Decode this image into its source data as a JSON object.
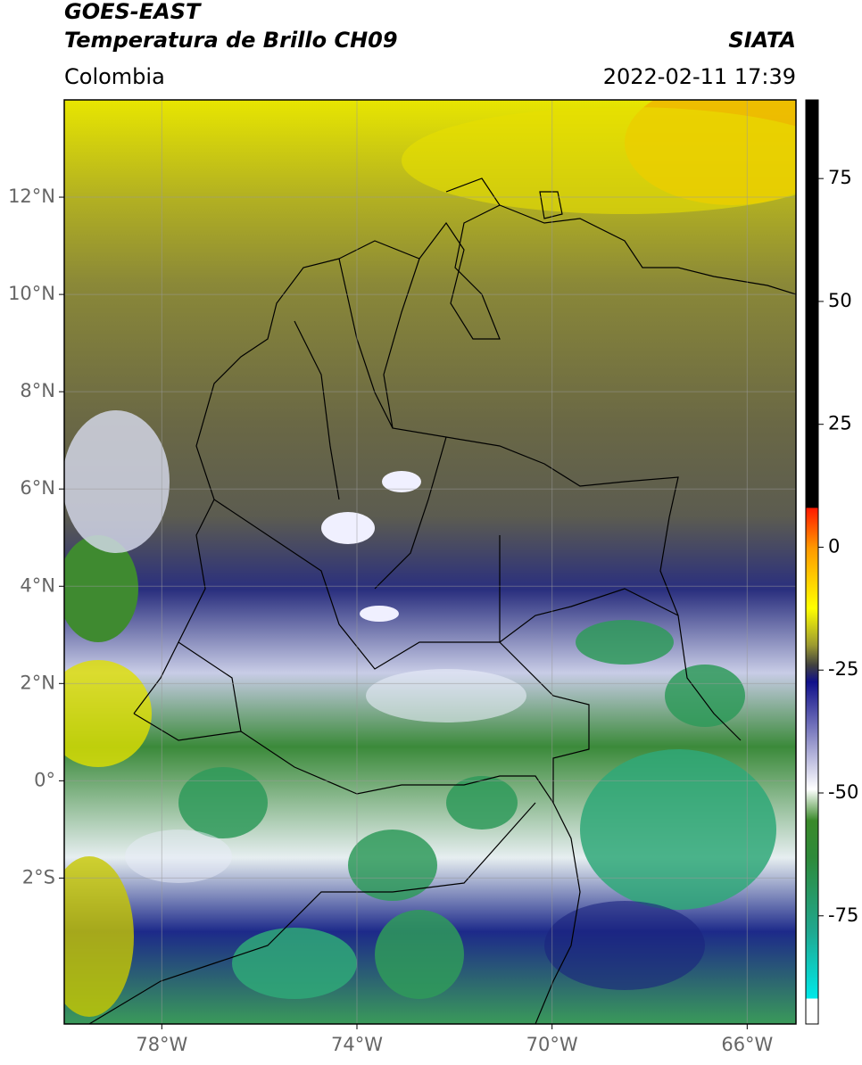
{
  "header": {
    "title": "GOES-EAST",
    "subtitle": "Temperatura de Brillo CH09",
    "region": "Colombia",
    "source": "SIATA",
    "datetime": "2022-02-11 17:39"
  },
  "map": {
    "xlim": [
      -80,
      -65
    ],
    "ylim": [
      -5,
      14
    ],
    "xticks": [
      {
        "value": -78,
        "label": "78°W"
      },
      {
        "value": -74,
        "label": "74°W"
      },
      {
        "value": -70,
        "label": "70°W"
      },
      {
        "value": -66,
        "label": "66°W"
      }
    ],
    "yticks": [
      {
        "value": 12,
        "label": "12°N"
      },
      {
        "value": 10,
        "label": "10°N"
      },
      {
        "value": 8,
        "label": "8°N"
      },
      {
        "value": 6,
        "label": "6°N"
      },
      {
        "value": 4,
        "label": "4°N"
      },
      {
        "value": 2,
        "label": "2°N"
      },
      {
        "value": 0,
        "label": "0°"
      },
      {
        "value": -2,
        "label": "2°S"
      }
    ],
    "grid": true
  },
  "colorbar": {
    "lim": [
      -97,
      91
    ],
    "ticks": [
      75,
      50,
      25,
      0,
      -25,
      -50,
      -75
    ]
  }
}
